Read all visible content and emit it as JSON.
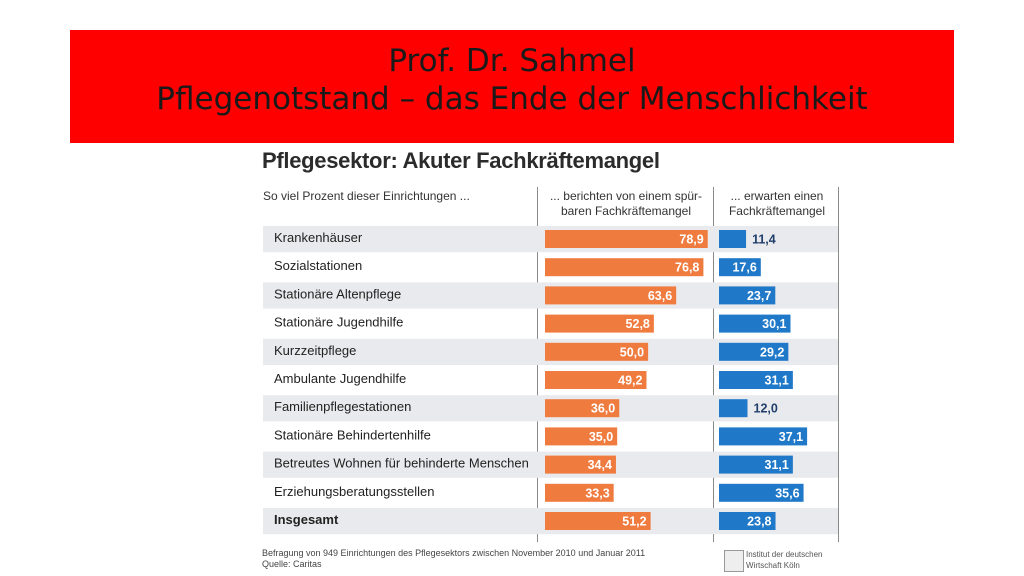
{
  "slide": {
    "title_line1": "Prof. Dr. Sahmel",
    "title_line2": "Pflegenotstand – das Ende der Menschlichkeit",
    "banner_color": "#ff0000"
  },
  "chart_data": {
    "type": "bar",
    "title": "Pflegesektor: Akuter Fachkräftemangel",
    "row_header": "So viel Prozent dieser Einrichtungen ...",
    "categories": [
      "Krankenhäuser",
      "Sozialstationen",
      "Stationäre Altenpflege",
      "Stationäre Jugendhilfe",
      "Kurzzeitpflege",
      "Ambulante Jugendhilfe",
      "Familienpflegestationen",
      "Stationäre Behindertenhilfe",
      "Betreutes Wohnen für behinderte Menschen",
      "Erziehungsberatungsstellen",
      "Insgesamt"
    ],
    "series": [
      {
        "name": "... berichten von einem spürbaren Fachkräftemangel",
        "name_line1": "... berichten von einem spür-",
        "name_line2": "baren Fachkräftemangel",
        "color": "#f07b3f",
        "values": [
          78.9,
          76.8,
          63.6,
          52.8,
          50.0,
          49.2,
          36.0,
          35.0,
          34.4,
          33.3,
          51.2
        ],
        "labels": [
          "78,9",
          "76,8",
          "63,6",
          "52,8",
          "50,0",
          "49,2",
          "36,0",
          "35,0",
          "34,4",
          "33,3",
          "51,2"
        ]
      },
      {
        "name": "... erwarten einen Fachkräftemangel",
        "name_line1": "... erwarten einen",
        "name_line2": "Fachkräftemangel",
        "color": "#1f78c8",
        "values": [
          11.4,
          17.6,
          23.7,
          30.1,
          29.2,
          31.1,
          12.0,
          37.1,
          31.1,
          35.6,
          23.8
        ],
        "labels": [
          "11,4",
          "17,6",
          "23,7",
          "30,1",
          "29,2",
          "31,1",
          "12,0",
          "37,1",
          "31,1",
          "35,6",
          "23,8"
        ]
      }
    ],
    "bold_last_row": true,
    "note": "Befragung von 949 Einrichtungen des Pflegesektors zwischen November 2010 und Januar 2011",
    "source": "Quelle: Caritas"
  },
  "logo": {
    "line1": "Institut der deutschen",
    "line2": "Wirtschaft Köln"
  }
}
